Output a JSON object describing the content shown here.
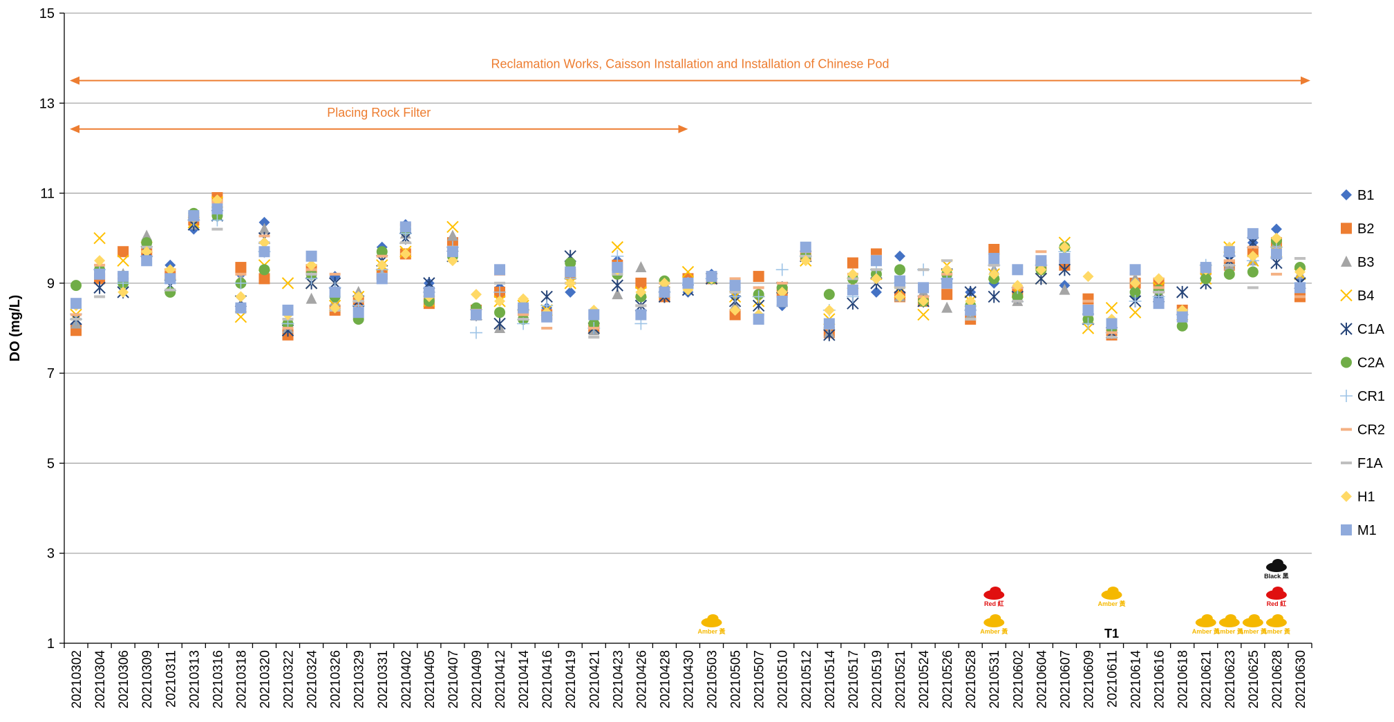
{
  "chart_data": {
    "type": "scatter",
    "y_label": "DO (mg/L)",
    "categories": [
      "20210302",
      "20210304",
      "20210306",
      "20210309",
      "20210311",
      "20210313",
      "20210316",
      "20210318",
      "20210320",
      "20210322",
      "20210324",
      "20210326",
      "20210329",
      "20210331",
      "20210402",
      "20210405",
      "20210407",
      "20210409",
      "20210412",
      "20210414",
      "20210416",
      "20210419",
      "20210421",
      "20210423",
      "20210426",
      "20210428",
      "20210430",
      "20210503",
      "20210505",
      "20210507",
      "20210510",
      "20210512",
      "20210514",
      "20210517",
      "20210519",
      "20210521",
      "20210524",
      "20210526",
      "20210528",
      "20210531",
      "20210602",
      "20210604",
      "20210607",
      "20210609",
      "20210611",
      "20210614",
      "20210616",
      "20210618",
      "20210621",
      "20210623",
      "20210625",
      "20210628",
      "20210630"
    ],
    "ylim": [
      1,
      15
    ],
    "yticks": [
      1,
      3,
      5,
      7,
      9,
      11,
      13,
      15
    ],
    "grid": true,
    "legend": "right",
    "series": [
      {
        "name": "B1",
        "color": "#4472c4",
        "marker": "diamond",
        "values": [
          8.1,
          9.3,
          9.1,
          9.8,
          9.4,
          10.2,
          10.5,
          9.2,
          10.35,
          8.0,
          9.3,
          9.15,
          8.4,
          9.8,
          10.3,
          9.0,
          9.6,
          8.3,
          8.9,
          8.5,
          8.45,
          8.8,
          8.1,
          9.5,
          8.7,
          8.9,
          8.8,
          9.2,
          8.7,
          8.3,
          8.5,
          9.7,
          7.9,
          9.1,
          8.8,
          9.6,
          8.7,
          9.2,
          8.8,
          9.0,
          8.7,
          9.4,
          8.95,
          8.3,
          7.9,
          8.7,
          8.7,
          8.4,
          9.3,
          9.6,
          9.9,
          10.2,
          9.1
        ]
      },
      {
        "name": "B2",
        "color": "#ed7d31",
        "marker": "square",
        "values": [
          7.95,
          9.1,
          9.7,
          9.7,
          9.2,
          10.4,
          10.9,
          9.35,
          9.1,
          7.85,
          9.3,
          8.4,
          8.6,
          9.2,
          9.65,
          8.55,
          9.9,
          8.4,
          8.8,
          8.4,
          8.3,
          9.2,
          8.0,
          9.4,
          9.0,
          8.7,
          9.1,
          9.1,
          8.3,
          9.15,
          8.8,
          9.6,
          7.9,
          9.45,
          9.65,
          8.7,
          8.6,
          8.75,
          8.2,
          9.75,
          8.8,
          9.4,
          9.4,
          8.65,
          7.85,
          9.0,
          9.0,
          8.4,
          9.3,
          9.4,
          9.7,
          9.9,
          8.7
        ]
      },
      {
        "name": "B3",
        "color": "#a5a5a5",
        "marker": "triangle",
        "values": [
          8.1,
          9.4,
          9.2,
          10.05,
          9.1,
          10.3,
          10.5,
          9.1,
          10.2,
          8.0,
          8.65,
          8.6,
          8.8,
          9.2,
          10.1,
          8.6,
          10.05,
          8.3,
          8.0,
          8.4,
          8.3,
          9.3,
          7.95,
          8.75,
          9.35,
          9.0,
          9.0,
          9.1,
          8.5,
          8.8,
          8.9,
          9.6,
          7.9,
          9.2,
          9.2,
          8.7,
          8.8,
          8.45,
          8.3,
          9.3,
          8.6,
          9.3,
          8.85,
          8.3,
          8.1,
          9.1,
          8.8,
          8.3,
          9.3,
          9.4,
          9.5,
          9.9,
          9.2
        ]
      },
      {
        "name": "B4",
        "color": "#ffc000",
        "marker": "x",
        "values": [
          8.3,
          10.0,
          9.5,
          9.8,
          9.2,
          10.35,
          10.8,
          8.25,
          9.4,
          9.0,
          9.0,
          8.5,
          8.7,
          9.4,
          9.7,
          8.6,
          10.25,
          8.3,
          8.6,
          8.5,
          8.4,
          9.0,
          8.0,
          9.8,
          8.8,
          8.8,
          9.25,
          9.1,
          8.7,
          8.6,
          8.9,
          9.5,
          8.2,
          9.0,
          9.2,
          8.8,
          8.3,
          9.4,
          8.6,
          9.2,
          8.8,
          9.1,
          9.9,
          8.0,
          8.45,
          8.35,
          8.9,
          8.3,
          9.1,
          9.8,
          9.5,
          9.7,
          9.2
        ]
      },
      {
        "name": "C1A",
        "color": "#264478",
        "marker": "star",
        "values": [
          8.2,
          8.9,
          8.8,
          9.7,
          8.95,
          10.3,
          10.5,
          8.6,
          10.0,
          7.95,
          9.0,
          9.0,
          8.6,
          9.5,
          10.0,
          9.0,
          9.6,
          8.3,
          8.1,
          8.3,
          8.7,
          9.6,
          8.0,
          8.95,
          8.5,
          8.7,
          8.85,
          9.1,
          8.6,
          8.5,
          8.9,
          9.6,
          7.85,
          8.55,
          9.0,
          8.9,
          8.6,
          9.2,
          8.8,
          8.7,
          8.7,
          9.1,
          9.3,
          8.2,
          7.9,
          8.6,
          8.7,
          8.8,
          9.0,
          9.5,
          9.9,
          9.45,
          9.0
        ]
      },
      {
        "name": "C2A",
        "color": "#70ad47",
        "marker": "circle",
        "values": [
          8.95,
          9.3,
          9.0,
          9.9,
          8.8,
          10.55,
          10.5,
          9.0,
          9.3,
          8.1,
          9.2,
          8.7,
          8.2,
          9.7,
          10.2,
          8.6,
          9.6,
          8.45,
          8.35,
          8.2,
          8.3,
          9.45,
          8.1,
          9.2,
          8.7,
          9.05,
          9.0,
          9.1,
          8.9,
          8.75,
          8.9,
          9.6,
          8.75,
          9.1,
          9.2,
          9.3,
          8.6,
          9.2,
          8.5,
          9.1,
          8.7,
          9.3,
          9.8,
          8.2,
          8.0,
          8.8,
          8.85,
          8.05,
          9.1,
          9.2,
          9.25,
          9.95,
          9.35
        ]
      },
      {
        "name": "CR1",
        "color": "#9dc3e6",
        "marker": "plus",
        "values": [
          8.2,
          9.3,
          9.0,
          9.6,
          9.0,
          10.4,
          10.4,
          9.0,
          9.7,
          8.1,
          9.1,
          8.9,
          8.5,
          9.3,
          10.1,
          8.8,
          9.8,
          7.9,
          8.8,
          8.1,
          8.5,
          9.1,
          8.0,
          9.6,
          8.1,
          8.8,
          9.0,
          9.1,
          8.7,
          8.7,
          9.3,
          9.6,
          8.4,
          8.7,
          9.3,
          9.0,
          9.3,
          9.1,
          8.4,
          9.4,
          8.9,
          9.4,
          9.7,
          8.1,
          7.9,
          8.6,
          8.7,
          8.3,
          9.4,
          9.6,
          9.5,
          9.8,
          9.0
        ]
      },
      {
        "name": "CR2",
        "color": "#f4b183",
        "marker": "dash",
        "values": [
          8.3,
          9.4,
          9.1,
          9.7,
          9.3,
          10.4,
          10.8,
          9.2,
          10.05,
          8.0,
          9.3,
          9.2,
          8.6,
          9.6,
          10.3,
          8.8,
          9.8,
          8.4,
          9.2,
          8.3,
          8.0,
          9.0,
          8.0,
          9.3,
          8.5,
          9.0,
          9.0,
          9.2,
          9.1,
          8.9,
          9.0,
          9.7,
          8.0,
          9.2,
          9.6,
          9.0,
          8.7,
          9.2,
          8.4,
          9.4,
          8.9,
          9.7,
          9.5,
          8.6,
          7.9,
          9.2,
          8.9,
          8.4,
          9.4,
          9.5,
          9.8,
          9.2,
          8.7
        ]
      },
      {
        "name": "F1A",
        "color": "#bfbfbf",
        "marker": "dash",
        "values": [
          8.2,
          8.7,
          9.2,
          9.8,
          8.85,
          10.4,
          10.2,
          8.5,
          9.9,
          8.2,
          9.2,
          8.4,
          8.6,
          9.2,
          9.9,
          8.7,
          9.8,
          8.2,
          9.0,
          8.2,
          8.2,
          9.0,
          7.8,
          9.2,
          8.5,
          8.8,
          8.9,
          9.1,
          8.8,
          8.3,
          8.5,
          9.6,
          8.0,
          9.1,
          9.3,
          8.9,
          9.3,
          9.5,
          8.2,
          9.4,
          8.6,
          9.4,
          9.5,
          8.3,
          7.8,
          9.2,
          8.8,
          8.4,
          9.4,
          9.4,
          8.9,
          9.6,
          9.55
        ]
      },
      {
        "name": "H1",
        "color": "#ffd966",
        "marker": "diamond",
        "values": [
          8.5,
          9.5,
          8.8,
          9.7,
          9.3,
          10.5,
          10.85,
          8.7,
          9.9,
          8.3,
          9.4,
          8.45,
          8.7,
          9.4,
          9.65,
          8.7,
          9.5,
          8.75,
          8.6,
          8.65,
          8.35,
          9.0,
          8.4,
          9.3,
          8.8,
          9.0,
          8.85,
          9.1,
          8.4,
          8.3,
          8.8,
          9.5,
          8.4,
          9.2,
          9.1,
          8.7,
          8.6,
          9.3,
          8.6,
          9.2,
          8.95,
          9.3,
          9.8,
          9.15,
          8.2,
          9.0,
          9.1,
          8.4,
          9.3,
          9.8,
          9.6,
          10.0,
          9.25
        ]
      },
      {
        "name": "M1",
        "color": "#8faadc",
        "marker": "square",
        "values": [
          8.55,
          9.2,
          9.15,
          9.5,
          9.1,
          10.5,
          10.65,
          8.45,
          9.7,
          8.4,
          9.6,
          8.8,
          8.35,
          9.1,
          10.25,
          8.8,
          9.7,
          8.3,
          9.3,
          8.45,
          8.25,
          9.25,
          8.3,
          9.35,
          8.3,
          8.8,
          9.0,
          9.15,
          8.95,
          8.2,
          8.6,
          9.8,
          8.1,
          8.85,
          9.5,
          9.05,
          8.9,
          9.0,
          8.4,
          9.55,
          9.3,
          9.5,
          9.55,
          8.4,
          8.1,
          9.3,
          8.55,
          8.25,
          9.35,
          9.7,
          10.1,
          9.65,
          8.9
        ]
      }
    ],
    "periods": [
      {
        "text": "Reclamation Works, Caisson Installation and Installation of Chinese Pod",
        "from": "20210302",
        "to": "20210630",
        "color": "#ed7d31"
      },
      {
        "text": "Placing Rock Filter",
        "from": "20210302",
        "to": "20210430",
        "color": "#ed7d31"
      }
    ],
    "signals": [
      {
        "category": "20210503",
        "text": "Amber 黃",
        "color": "#f5b800"
      },
      {
        "category": "20210531",
        "text": "Amber 黃",
        "color": "#f5b800"
      },
      {
        "category": "20210531",
        "text": "Red 紅",
        "color": "#e01010"
      },
      {
        "category": "20210611",
        "text": "T1",
        "color": null
      },
      {
        "category": "20210611",
        "text": "Amber 黃",
        "color": "#f5b800"
      },
      {
        "category": "20210621",
        "text": "Amber 黃",
        "color": "#f5b800"
      },
      {
        "category": "20210623",
        "text": "Amber 黃",
        "color": "#f5b800"
      },
      {
        "category": "20210625",
        "text": "Amber 黃",
        "color": "#f5b800"
      },
      {
        "category": "20210628",
        "text": "Amber 黃",
        "color": "#f5b800"
      },
      {
        "category": "20210628",
        "text": "Red 紅",
        "color": "#e01010"
      },
      {
        "category": "20210628",
        "text": "Black 黑",
        "color": "#111111"
      }
    ]
  }
}
